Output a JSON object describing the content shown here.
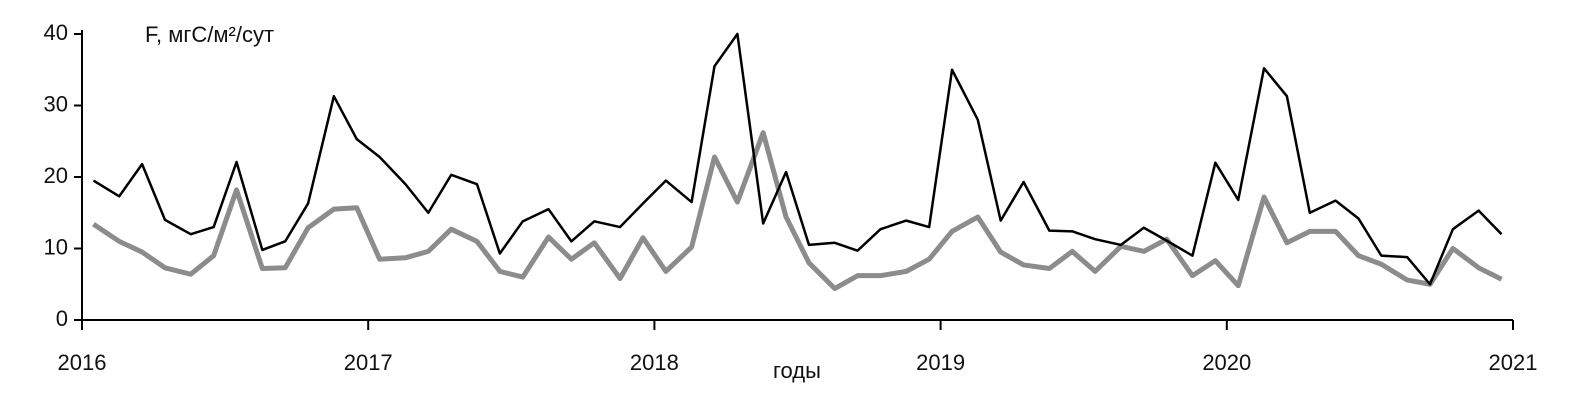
{
  "chart_data": {
    "type": "line",
    "ylabel": "F, мгС/м²/сут",
    "xlabel": "годы",
    "x": [
      2016.04,
      2016.13,
      2016.21,
      2016.29,
      2016.38,
      2016.46,
      2016.54,
      2016.63,
      2016.71,
      2016.79,
      2016.88,
      2016.96,
      2017.04,
      2017.13,
      2017.21,
      2017.29,
      2017.38,
      2017.46,
      2017.54,
      2017.63,
      2017.71,
      2017.79,
      2017.88,
      2017.96,
      2018.04,
      2018.13,
      2018.21,
      2018.29,
      2018.38,
      2018.46,
      2018.54,
      2018.63,
      2018.71,
      2018.79,
      2018.88,
      2018.96,
      2019.04,
      2019.13,
      2019.21,
      2019.29,
      2019.38,
      2019.46,
      2019.54,
      2019.63,
      2019.71,
      2019.79,
      2019.88,
      2019.96,
      2020.04,
      2020.13,
      2020.21,
      2020.29,
      2020.38,
      2020.46,
      2020.54,
      2020.63,
      2020.71,
      2020.79,
      2020.88,
      2020.96
    ],
    "series": [
      {
        "color": "#000000",
        "width": 2.5,
        "values": [
          19.5,
          17.3,
          21.8,
          14,
          12,
          13,
          22.1,
          9.8,
          11,
          16.3,
          31.3,
          25.3,
          22.8,
          19,
          15,
          20.3,
          19,
          9.3,
          13.8,
          15.5,
          11,
          13.8,
          13,
          16.3,
          19.5,
          16.5,
          35.5,
          40,
          13.5,
          20.7,
          10.5,
          10.8,
          9.7,
          12.7,
          13.9,
          13,
          35,
          28,
          13.9,
          19.3,
          12.5,
          12.4,
          11.3,
          10.5,
          12.9,
          11.1,
          9,
          22,
          16.8,
          35.2,
          31.3,
          15,
          16.7,
          14.2,
          9,
          8.8,
          5,
          12.7,
          15.3,
          12
        ]
      },
      {
        "color": "#8c8c8c",
        "width": 5,
        "values": [
          13.4,
          11,
          9.5,
          7.3,
          6.4,
          9,
          18.2,
          7.2,
          7.3,
          12.9,
          15.5,
          15.7,
          8.5,
          8.7,
          9.6,
          12.7,
          11,
          6.8,
          6,
          11.6,
          8.5,
          10.8,
          5.8,
          11.5,
          6.8,
          10.2,
          22.8,
          16.5,
          26.2,
          14.4,
          8,
          4.4,
          6.2,
          6.2,
          6.8,
          8.5,
          12.4,
          14.4,
          9.5,
          7.7,
          7.2,
          9.6,
          6.8,
          10.3,
          9.6,
          11.3,
          6.2,
          8.3,
          4.8,
          17.2,
          10.8,
          12.4,
          12.4,
          9,
          7.8,
          5.6,
          5,
          10,
          7.3,
          5.7
        ]
      }
    ],
    "xlim": [
      2016,
      2021
    ],
    "xticks": [
      2016,
      2017,
      2018,
      2019,
      2020,
      2021
    ],
    "ylim": [
      0,
      40
    ],
    "yticks": [
      0,
      10,
      20,
      30,
      40
    ]
  }
}
